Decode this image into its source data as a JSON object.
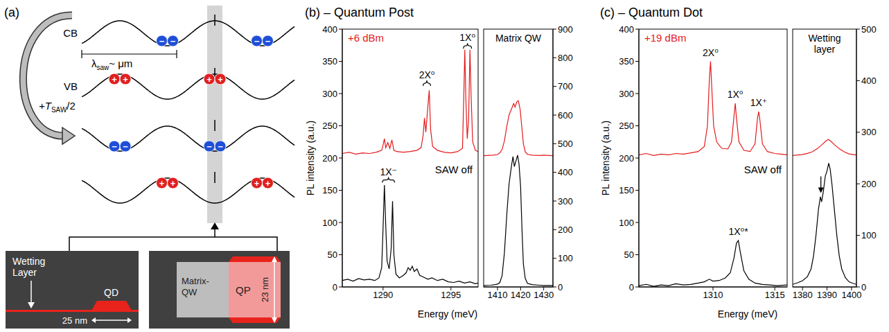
{
  "diagram": {
    "panel_label": "(a)",
    "bands": [
      "CB",
      "VB"
    ],
    "wavelength_label": {
      "symbol": "λ",
      "subscript": "saw",
      "suffix": "~ μm"
    },
    "time_step_label": {
      "prefix": "+T",
      "subscript": "SAW",
      "suffix": "/2"
    },
    "charge_signs": {
      "electron": "−",
      "hole": "+"
    },
    "insets": {
      "quantum_dot": {
        "layer": "Wetting Layer",
        "dot": "QD",
        "width": "25 nm"
      },
      "quantum_post": {
        "matrix": "Matrix-QW",
        "post": "QP",
        "height": "23 nm"
      }
    }
  },
  "chart_data": [
    {
      "type": "line",
      "title": "(b) – Quantum Post",
      "xlabel": "Energy (meV)",
      "ylabel": "PL intensity (a.u.)",
      "xlim": [
        1287,
        1297
      ],
      "xticks": [
        1290,
        1295
      ],
      "ylim": [
        0,
        400
      ],
      "yticks": [
        0,
        50,
        100,
        150,
        200,
        250,
        300,
        350,
        400
      ],
      "series": [
        {
          "name": "+6 dBm",
          "color": "#e41a1c",
          "x": [
            1287.0,
            1287.5,
            1288.0,
            1288.5,
            1289.0,
            1289.5,
            1289.9,
            1290.0,
            1290.1,
            1290.2,
            1290.35,
            1290.5,
            1290.65,
            1290.8,
            1291.0,
            1291.5,
            1292.0,
            1292.5,
            1292.8,
            1292.95,
            1293.05,
            1293.15,
            1293.3,
            1293.4,
            1293.5,
            1293.65,
            1294.0,
            1294.5,
            1295.0,
            1295.5,
            1295.85,
            1295.95,
            1296.02,
            1296.1,
            1296.2,
            1296.3,
            1296.4,
            1296.48,
            1296.6,
            1296.8,
            1297.0
          ],
          "values": [
            207,
            209,
            206,
            208,
            207,
            209,
            212,
            220,
            230,
            216,
            224,
            215,
            228,
            212,
            210,
            209,
            210,
            212,
            216,
            235,
            262,
            240,
            280,
            305,
            245,
            218,
            212,
            209,
            208,
            210,
            215,
            300,
            368,
            290,
            230,
            260,
            368,
            300,
            225,
            212,
            210
          ]
        },
        {
          "name": "SAW off",
          "color": "#000000",
          "x": [
            1287.0,
            1287.4,
            1287.8,
            1288.2,
            1288.6,
            1289.0,
            1289.4,
            1289.7,
            1289.9,
            1290.0,
            1290.1,
            1290.2,
            1290.3,
            1290.45,
            1290.6,
            1290.7,
            1290.8,
            1290.95,
            1291.2,
            1291.5,
            1291.7,
            1291.85,
            1292.0,
            1292.15,
            1292.3,
            1292.5,
            1292.7,
            1293.0,
            1293.3,
            1293.6,
            1294.0,
            1294.4,
            1294.8,
            1295.2,
            1295.6,
            1296.0,
            1296.4,
            1296.8,
            1297.0
          ],
          "values": [
            10,
            12,
            9,
            13,
            11,
            12,
            10,
            14,
            30,
            90,
            158,
            95,
            40,
            28,
            60,
            133,
            50,
            20,
            14,
            18,
            22,
            30,
            26,
            32,
            24,
            28,
            18,
            15,
            12,
            14,
            10,
            12,
            8,
            7,
            9,
            6,
            8,
            5,
            6
          ]
        }
      ],
      "annotations": [
        {
          "text": "1X⁻",
          "x_range": [
            1289.95,
            1290.85
          ],
          "y": 166
        },
        {
          "text": "2X⁰",
          "x_range": [
            1292.95,
            1293.5
          ],
          "y": 316
        },
        {
          "text": "1X⁰",
          "x_range": [
            1295.92,
            1296.52
          ],
          "y": 374
        }
      ]
    },
    {
      "type": "line",
      "title": "Matrix QW",
      "xlim": [
        1404,
        1434
      ],
      "xticks": [
        1410,
        1420,
        1430
      ],
      "ylim": [
        0,
        900
      ],
      "yticks": [
        0,
        100,
        200,
        300,
        400,
        500,
        600,
        700,
        800,
        900
      ],
      "series": [
        {
          "color": "#e41a1c",
          "x": [
            1404,
            1408,
            1410,
            1411,
            1412,
            1413,
            1414,
            1415,
            1416,
            1417,
            1417.6,
            1418.3,
            1419,
            1419.8,
            1420.5,
            1421.2,
            1422,
            1423,
            1425,
            1428,
            1430,
            1434
          ],
          "values": [
            458,
            460,
            462,
            468,
            480,
            510,
            560,
            600,
            620,
            640,
            628,
            645,
            650,
            620,
            560,
            500,
            472,
            463,
            460,
            459,
            460,
            458
          ]
        },
        {
          "color": "#000000",
          "x": [
            1404,
            1407,
            1409,
            1410,
            1411,
            1412,
            1413,
            1414,
            1415,
            1416,
            1416.7,
            1417.3,
            1418,
            1418.7,
            1419.3,
            1420,
            1420.6,
            1421.2,
            1422,
            1423,
            1425,
            1428,
            1430,
            1434
          ],
          "values": [
            5,
            6,
            8,
            10,
            15,
            40,
            120,
            250,
            360,
            420,
            455,
            420,
            440,
            460,
            430,
            350,
            200,
            80,
            30,
            12,
            8,
            6,
            5,
            5
          ]
        }
      ]
    },
    {
      "type": "line",
      "title": "(c) – Quantum Dot",
      "xlabel": "Energy (meV)",
      "ylabel": "PL intensity (a.u.)",
      "xlim": [
        1304,
        1316
      ],
      "xticks": [
        1310,
        1315
      ],
      "ylim": [
        0,
        400
      ],
      "yticks": [
        0,
        50,
        100,
        150,
        200,
        250,
        300,
        350,
        400
      ],
      "series": [
        {
          "name": "+19 dBm",
          "color": "#e41a1c",
          "x": [
            1304.0,
            1304.6,
            1305.2,
            1305.8,
            1306.4,
            1307.0,
            1307.6,
            1308.2,
            1308.8,
            1309.3,
            1309.55,
            1309.7,
            1309.8,
            1309.9,
            1310.05,
            1310.3,
            1310.7,
            1311.2,
            1311.5,
            1311.7,
            1311.8,
            1311.9,
            1312.1,
            1312.5,
            1313.0,
            1313.4,
            1313.6,
            1313.7,
            1313.8,
            1314.0,
            1314.4,
            1315.0,
            1315.5,
            1316.0
          ],
          "values": [
            205,
            207,
            204,
            206,
            205,
            207,
            206,
            208,
            210,
            218,
            250,
            320,
            350,
            310,
            250,
            225,
            215,
            214,
            225,
            265,
            285,
            262,
            225,
            212,
            210,
            222,
            262,
            272,
            258,
            222,
            210,
            207,
            206,
            205
          ]
        },
        {
          "name": "SAW off",
          "color": "#000000",
          "x": [
            1304.0,
            1304.6,
            1305.2,
            1305.8,
            1306.4,
            1307.0,
            1307.6,
            1308.2,
            1308.8,
            1309.3,
            1309.7,
            1310.0,
            1310.5,
            1311.0,
            1311.4,
            1311.7,
            1311.9,
            1312.05,
            1312.2,
            1312.5,
            1312.9,
            1313.4,
            1314.0,
            1314.6,
            1315.2,
            1316.0
          ],
          "values": [
            2,
            4,
            1,
            3,
            2,
            5,
            3,
            4,
            6,
            8,
            12,
            9,
            10,
            14,
            22,
            45,
            68,
            72,
            55,
            25,
            12,
            6,
            4,
            3,
            2,
            3
          ]
        }
      ],
      "annotations": [
        {
          "text": "2X⁰",
          "x": 1309.8,
          "y": 356
        },
        {
          "text": "1X⁰",
          "x": 1311.8,
          "y": 291
        },
        {
          "text": "1X⁺",
          "x": 1313.7,
          "y": 278
        },
        {
          "text": "1X⁰*",
          "x": 1312.05,
          "y": 78
        }
      ]
    },
    {
      "type": "line",
      "title": "Wetting layer",
      "xlim": [
        1376,
        1402
      ],
      "xticks": [
        1380,
        1390,
        1400
      ],
      "ylim": [
        0,
        500
      ],
      "yticks": [
        0,
        100,
        200,
        300,
        400,
        500
      ],
      "series": [
        {
          "color": "#e41a1c",
          "x": [
            1376,
            1378,
            1380,
            1382,
            1384,
            1386,
            1388,
            1389.5,
            1390.5,
            1391.5,
            1393,
            1395,
            1397,
            1399,
            1402
          ],
          "values": [
            255,
            256,
            257,
            259,
            262,
            268,
            276,
            283,
            286,
            283,
            276,
            268,
            262,
            258,
            256
          ]
        },
        {
          "color": "#000000",
          "x": [
            1376,
            1378,
            1380,
            1382,
            1383.5,
            1384.5,
            1385.5,
            1386.5,
            1387.3,
            1387.8,
            1388.5,
            1389.3,
            1390,
            1390.7,
            1391.3,
            1392,
            1393,
            1394,
            1395,
            1396,
            1397.5,
            1399,
            1400.5,
            1402
          ],
          "values": [
            5,
            8,
            12,
            20,
            35,
            60,
            100,
            150,
            175,
            165,
            185,
            215,
            225,
            240,
            228,
            200,
            150,
            100,
            60,
            35,
            18,
            10,
            7,
            5
          ]
        }
      ],
      "arrows": [
        {
          "x": 1387.5,
          "y": 182
        }
      ]
    }
  ]
}
